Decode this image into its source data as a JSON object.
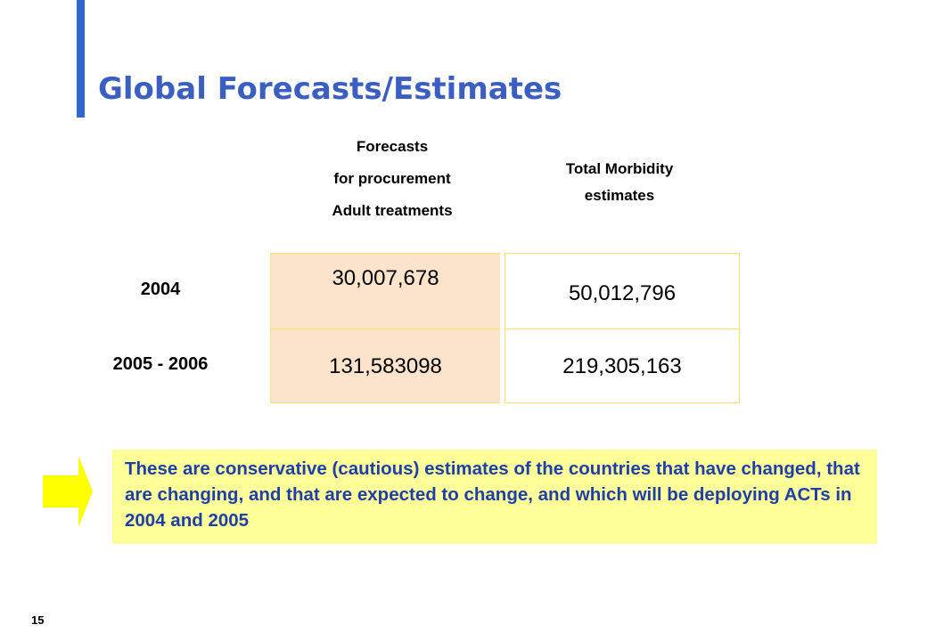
{
  "slide": {
    "title": "Global Forecasts/Estimates",
    "page_number": "15",
    "accent_color": "#3366cc",
    "title_color": "#3a5fc0"
  },
  "table": {
    "headers": {
      "forecasts": [
        "Forecasts",
        "for procurement",
        "Adult treatments"
      ],
      "morbidity": [
        "Total Morbidity",
        "estimates"
      ]
    },
    "rows": [
      {
        "label": "2004",
        "forecast": "30,007,678",
        "morbidity": "50,012,796"
      },
      {
        "label": "2005 - 2006",
        "forecast": "131,583098",
        "morbidity": "219,305,163"
      }
    ],
    "forecast_fill": "#fce4cc",
    "border_color": "#f5e36a"
  },
  "note": {
    "text": "These are conservative (cautious) estimates of the countries that have changed, that are changing, and that are expected to change, and which will be deploying ACTs in 2004 and 2005",
    "background": "#ffff99",
    "text_color": "#1f3fa8",
    "icon": "arrow-right-icon"
  }
}
